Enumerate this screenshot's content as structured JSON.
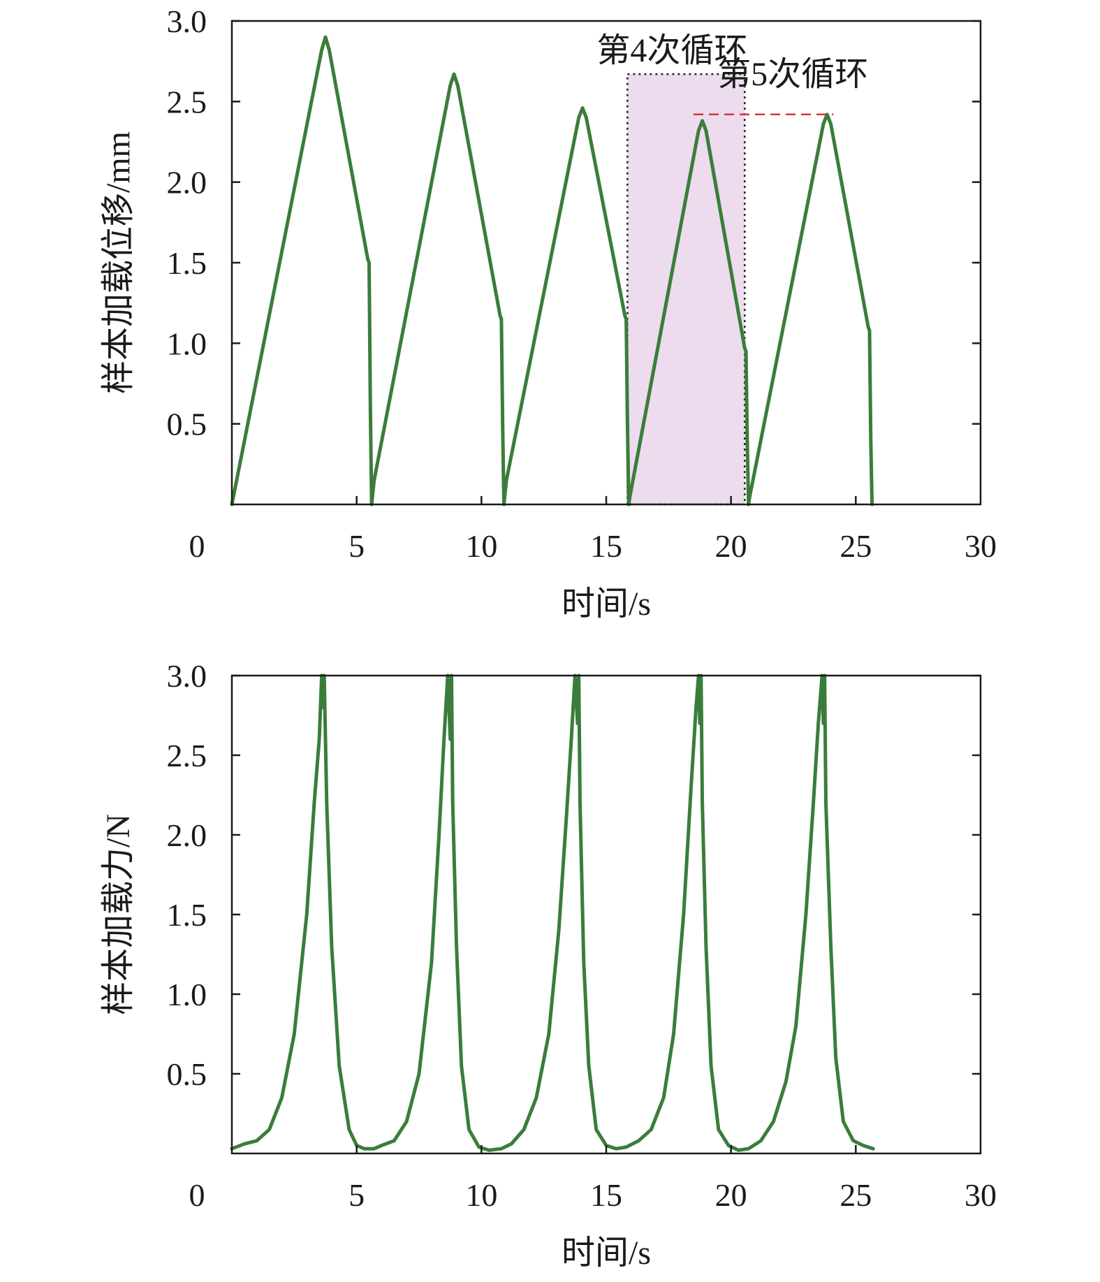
{
  "chart_data": [
    {
      "type": "line",
      "xlabel": "时间/s",
      "ylabel": "样本加载位移/mm",
      "xlim": [
        0,
        30
      ],
      "ylim": [
        0,
        3.0
      ],
      "xticks": [
        "0",
        "5",
        "10",
        "15",
        "20",
        "25",
        "30"
      ],
      "yticks": [
        "0.5",
        "1.0",
        "1.5",
        "2.0",
        "2.5",
        "3.0"
      ],
      "grid": false,
      "series": [
        {
          "color": "#3a7d3a",
          "x": [
            0.0,
            3.6,
            3.75,
            3.9,
            5.45,
            5.5,
            5.55,
            5.6,
            5.7,
            8.75,
            8.9,
            9.05,
            10.75,
            10.8,
            10.85,
            10.9,
            11.0,
            13.9,
            14.05,
            14.2,
            15.75,
            15.8,
            15.85,
            15.9,
            15.95,
            18.7,
            18.85,
            19.0,
            20.55,
            20.6,
            20.65,
            20.7,
            20.75,
            23.7,
            23.85,
            24.0,
            25.5,
            25.55,
            25.6,
            25.65
          ],
          "y": [
            0.0,
            2.82,
            2.9,
            2.82,
            1.52,
            1.5,
            0.6,
            0.0,
            0.15,
            2.6,
            2.67,
            2.6,
            1.17,
            1.15,
            0.5,
            0.0,
            0.15,
            2.4,
            2.46,
            2.4,
            1.17,
            1.15,
            0.5,
            0.0,
            0.05,
            2.32,
            2.38,
            2.32,
            0.97,
            0.95,
            0.4,
            0.0,
            0.05,
            2.36,
            2.42,
            2.36,
            1.1,
            1.08,
            0.4,
            0.0
          ]
        }
      ],
      "annotations": [
        {
          "text": "第4次循环",
          "x0": 15.85,
          "x1": 20.55,
          "y0": 0.0,
          "y1": 2.67,
          "fill": "#ecdcee"
        },
        {
          "text": "第5次循环",
          "reference_y": 2.42,
          "x0": 18.5,
          "x1": 24.1,
          "line_color": "#d9343a"
        }
      ]
    },
    {
      "type": "line",
      "xlabel": "时间/s",
      "ylabel": "样本加载力/N",
      "xlim": [
        0,
        30
      ],
      "ylim": [
        0,
        3.0
      ],
      "xticks": [
        "0",
        "5",
        "10",
        "15",
        "20",
        "25",
        "30"
      ],
      "yticks": [
        "0.5",
        "1.0",
        "1.5",
        "2.0",
        "2.5",
        "3.0"
      ],
      "grid": false,
      "series": [
        {
          "color": "#3a7d3a",
          "x": [
            0.0,
            0.5,
            1.0,
            1.5,
            2.0,
            2.5,
            3.0,
            3.3,
            3.5,
            3.6,
            3.65,
            3.7,
            3.8,
            4.0,
            4.3,
            4.7,
            5.0,
            5.3,
            5.7,
            6.0,
            6.5,
            7.0,
            7.5,
            8.0,
            8.3,
            8.5,
            8.65,
            8.75,
            8.8,
            8.85,
            9.0,
            9.2,
            9.5,
            9.9,
            10.3,
            10.8,
            11.2,
            11.7,
            12.2,
            12.7,
            13.1,
            13.4,
            13.6,
            13.75,
            13.85,
            13.9,
            13.95,
            14.1,
            14.3,
            14.6,
            15.0,
            15.4,
            15.8,
            16.3,
            16.8,
            17.3,
            17.7,
            18.1,
            18.4,
            18.6,
            18.7,
            18.75,
            18.8,
            18.85,
            19.0,
            19.2,
            19.5,
            19.9,
            20.3,
            20.7,
            21.2,
            21.7,
            22.2,
            22.6,
            23.0,
            23.3,
            23.5,
            23.65,
            23.7,
            23.75,
            23.8,
            24.0,
            24.2,
            24.5,
            24.9,
            25.3,
            25.7
          ],
          "y": [
            0.03,
            0.06,
            0.08,
            0.15,
            0.35,
            0.75,
            1.5,
            2.2,
            2.6,
            3.0,
            2.8,
            3.0,
            2.2,
            1.3,
            0.55,
            0.15,
            0.05,
            0.03,
            0.03,
            0.05,
            0.08,
            0.2,
            0.5,
            1.2,
            2.0,
            2.6,
            3.0,
            2.6,
            3.0,
            2.2,
            1.3,
            0.55,
            0.15,
            0.04,
            0.02,
            0.03,
            0.06,
            0.15,
            0.35,
            0.75,
            1.4,
            2.1,
            2.6,
            3.0,
            2.7,
            3.0,
            2.2,
            1.2,
            0.55,
            0.15,
            0.05,
            0.03,
            0.04,
            0.08,
            0.15,
            0.35,
            0.75,
            1.5,
            2.3,
            2.8,
            3.0,
            2.7,
            3.0,
            2.2,
            1.3,
            0.55,
            0.15,
            0.05,
            0.02,
            0.03,
            0.08,
            0.2,
            0.45,
            0.8,
            1.5,
            2.2,
            2.7,
            3.0,
            2.7,
            3.0,
            2.2,
            1.3,
            0.6,
            0.2,
            0.08,
            0.05,
            0.03
          ]
        }
      ]
    }
  ]
}
